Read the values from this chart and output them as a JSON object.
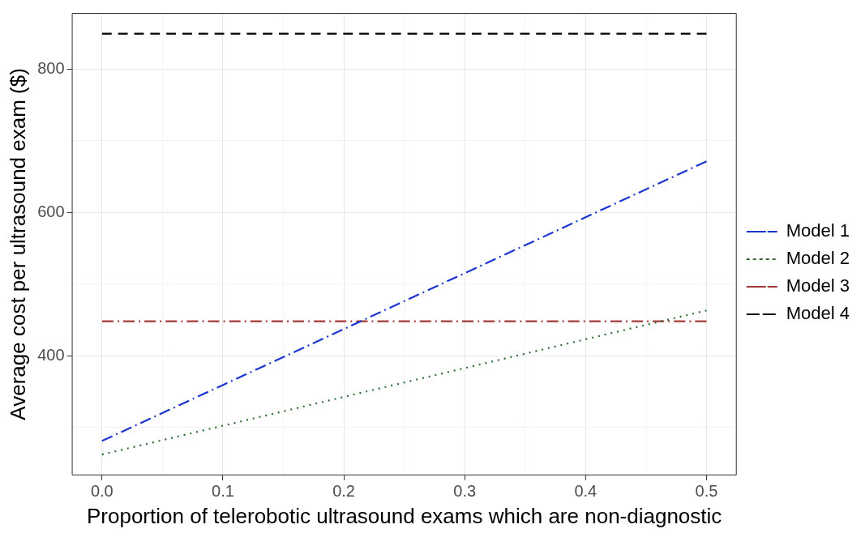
{
  "chart_data": {
    "type": "line",
    "xlabel": "Proportion of telerobotic ultrasound exams which are non-diagnostic",
    "ylabel": "Average cost per ultrasound exam ($)",
    "x": [
      0,
      0.5
    ],
    "series": [
      {
        "name": "Model 1",
        "color": "#1a35d0",
        "values": [
          281,
          671
        ],
        "line_style": "dashdot"
      },
      {
        "name": "Model 2",
        "color": "#2f6e2f",
        "values": [
          262,
          463
        ],
        "line_style": "dotted"
      },
      {
        "name": "Model 3",
        "color": "#a33a3a",
        "values": [
          448,
          448
        ],
        "line_style": "dashdot"
      },
      {
        "name": "Model 4",
        "color": "#000000",
        "values": [
          849,
          849
        ],
        "line_style": "dashed"
      }
    ],
    "xlim": [
      -0.025,
      0.525
    ],
    "xticks": [
      {
        "value": 0,
        "label": "0.0"
      },
      0.1,
      0.2,
      0.3,
      0.4,
      0.5
    ],
    "ylim": [
      233,
      878
    ],
    "yticks": [
      400,
      600,
      800
    ],
    "grid": true,
    "legend": "right",
    "marker": "none"
  }
}
